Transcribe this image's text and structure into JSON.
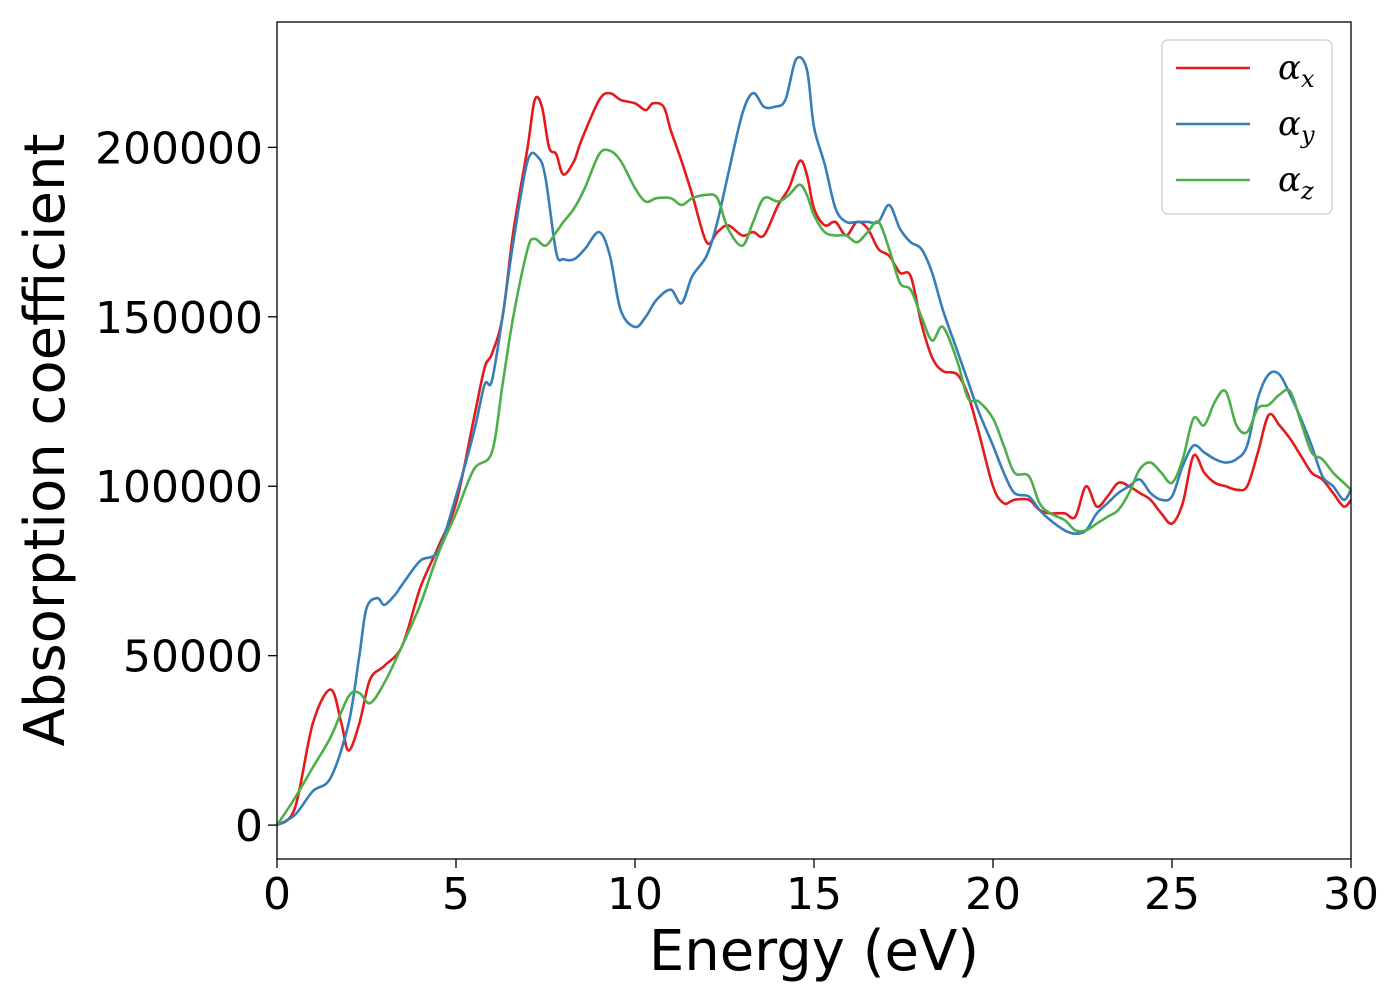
{
  "chart_data": {
    "type": "line",
    "xlabel": "Energy (eV)",
    "ylabel": "Absorption coefficient",
    "xlim": [
      0,
      30
    ],
    "ylim": [
      -10000,
      237000
    ],
    "xticks": [
      0,
      5,
      10,
      15,
      20,
      25,
      30
    ],
    "xtick_labels": [
      "0",
      "5",
      "10",
      "15",
      "20",
      "25",
      "30"
    ],
    "yticks": [
      0,
      50000,
      100000,
      150000,
      200000
    ],
    "ytick_labels": [
      "0",
      "50000",
      "100000",
      "150000",
      "200000"
    ],
    "grid": false,
    "legend_position": "top-right",
    "series": [
      {
        "name": "αx",
        "legend_symbol": "α",
        "legend_subscript": "x",
        "color": "#e41a1c",
        "x": [
          0,
          0.5,
          1.0,
          1.5,
          1.8,
          2.0,
          2.3,
          2.6,
          3.0,
          3.5,
          4.0,
          4.5,
          5.0,
          5.5,
          5.8,
          6.0,
          6.3,
          6.6,
          7.0,
          7.2,
          7.4,
          7.6,
          7.8,
          8.0,
          8.3,
          8.5,
          9.0,
          9.3,
          9.6,
          10.0,
          10.3,
          10.5,
          10.8,
          11.0,
          11.3,
          11.6,
          12.0,
          12.3,
          12.6,
          13.0,
          13.3,
          13.6,
          14.0,
          14.3,
          14.6,
          14.8,
          15.0,
          15.3,
          15.6,
          15.9,
          16.2,
          16.5,
          16.8,
          17.1,
          17.4,
          17.7,
          18.0,
          18.3,
          18.6,
          19.0,
          19.3,
          19.6,
          20.0,
          20.3,
          20.6,
          21.0,
          21.3,
          21.6,
          22.0,
          22.3,
          22.6,
          22.9,
          23.2,
          23.5,
          23.8,
          24.1,
          24.4,
          24.7,
          25.0,
          25.3,
          25.6,
          25.9,
          26.2,
          26.5,
          26.8,
          27.1,
          27.4,
          27.7,
          28.0,
          28.3,
          28.6,
          28.9,
          29.2,
          29.5,
          29.8,
          30.0
        ],
        "y": [
          0,
          5000,
          30000,
          40000,
          30000,
          22000,
          30000,
          43000,
          47000,
          53000,
          70000,
          82000,
          95000,
          120000,
          135000,
          139000,
          150000,
          175000,
          200000,
          214000,
          212000,
          200000,
          198000,
          192000,
          196000,
          202000,
          214000,
          216000,
          214000,
          213000,
          211000,
          213000,
          212000,
          205000,
          196000,
          186000,
          172000,
          175000,
          177000,
          174000,
          175000,
          174000,
          183000,
          188000,
          196000,
          192000,
          182000,
          177000,
          178000,
          174000,
          178000,
          176000,
          170000,
          168000,
          163000,
          162000,
          148000,
          138000,
          134000,
          133000,
          127000,
          116000,
          100000,
          95000,
          96000,
          96000,
          93000,
          92000,
          92000,
          91000,
          100000,
          94000,
          97000,
          101000,
          100000,
          98000,
          96000,
          92000,
          89000,
          95000,
          109000,
          104000,
          101000,
          100000,
          99000,
          100000,
          110000,
          121000,
          118000,
          114000,
          109000,
          104000,
          102000,
          98000,
          94000,
          96000
        ]
      },
      {
        "name": "αy",
        "legend_symbol": "α",
        "legend_subscript": "y",
        "color": "#377eb8",
        "x": [
          0,
          0.5,
          1.0,
          1.5,
          2.0,
          2.3,
          2.5,
          2.8,
          3.0,
          3.3,
          3.5,
          4.0,
          4.5,
          5.0,
          5.5,
          5.8,
          6.0,
          6.3,
          6.6,
          7.0,
          7.3,
          7.5,
          7.8,
          8.0,
          8.3,
          8.6,
          9.0,
          9.3,
          9.6,
          10.0,
          10.3,
          10.6,
          11.0,
          11.3,
          11.6,
          12.0,
          12.3,
          12.6,
          13.0,
          13.3,
          13.6,
          13.9,
          14.2,
          14.5,
          14.8,
          15.0,
          15.3,
          15.6,
          15.9,
          16.2,
          16.5,
          16.8,
          17.1,
          17.4,
          17.7,
          18.0,
          18.3,
          18.6,
          19.0,
          19.3,
          19.6,
          20.0,
          20.3,
          20.6,
          21.0,
          21.3,
          21.6,
          22.0,
          22.3,
          22.6,
          22.9,
          23.2,
          23.5,
          23.8,
          24.1,
          24.4,
          24.7,
          25.0,
          25.3,
          25.6,
          25.9,
          26.2,
          26.5,
          26.8,
          27.1,
          27.4,
          27.7,
          28.0,
          28.3,
          28.6,
          28.9,
          29.2,
          29.5,
          29.8,
          30.0
        ],
        "y": [
          0,
          3000,
          10000,
          14000,
          30000,
          50000,
          64000,
          67000,
          65000,
          68000,
          71000,
          78000,
          81000,
          97000,
          116000,
          130000,
          131000,
          150000,
          172000,
          196000,
          197000,
          191000,
          169000,
          167000,
          167000,
          170000,
          175000,
          168000,
          152000,
          147000,
          150000,
          155000,
          158000,
          154000,
          162000,
          168000,
          178000,
          192000,
          210000,
          216000,
          212000,
          212000,
          214000,
          226000,
          223000,
          206000,
          195000,
          182000,
          178000,
          178000,
          178000,
          178000,
          183000,
          176000,
          172000,
          170000,
          163000,
          152000,
          140000,
          131000,
          122000,
          112000,
          104000,
          98000,
          97000,
          93000,
          90000,
          87000,
          86000,
          87000,
          92000,
          95000,
          98000,
          100000,
          102000,
          98000,
          96000,
          97000,
          106000,
          112000,
          110000,
          108000,
          107000,
          108000,
          112000,
          126000,
          133000,
          133000,
          127000,
          120000,
          112000,
          103000,
          100000,
          96000,
          99000
        ]
      },
      {
        "name": "αz",
        "legend_symbol": "α",
        "legend_subscript": "z",
        "color": "#4daf4a",
        "x": [
          0,
          0.5,
          1.0,
          1.5,
          2.0,
          2.3,
          2.6,
          3.0,
          3.5,
          4.0,
          4.5,
          5.0,
          5.5,
          6.0,
          6.3,
          6.6,
          7.0,
          7.2,
          7.5,
          7.8,
          8.0,
          8.3,
          8.6,
          9.0,
          9.3,
          9.6,
          10.0,
          10.3,
          10.6,
          11.0,
          11.3,
          11.6,
          12.0,
          12.3,
          12.6,
          13.0,
          13.3,
          13.6,
          14.0,
          14.3,
          14.6,
          14.8,
          15.0,
          15.3,
          15.6,
          15.9,
          16.2,
          16.5,
          16.8,
          17.1,
          17.4,
          17.7,
          18.0,
          18.3,
          18.6,
          19.0,
          19.3,
          19.6,
          20.0,
          20.3,
          20.6,
          21.0,
          21.3,
          21.6,
          22.0,
          22.3,
          22.6,
          22.9,
          23.2,
          23.5,
          23.8,
          24.1,
          24.4,
          24.7,
          25.0,
          25.3,
          25.6,
          25.9,
          26.2,
          26.5,
          26.8,
          27.1,
          27.4,
          27.7,
          28.0,
          28.3,
          28.6,
          28.9,
          29.2,
          29.5,
          29.8,
          30.0
        ],
        "y": [
          0,
          8000,
          17000,
          26000,
          38000,
          39000,
          36000,
          42000,
          53000,
          65000,
          80000,
          92000,
          105000,
          110000,
          130000,
          150000,
          170000,
          173000,
          171000,
          175000,
          178000,
          182000,
          188000,
          198000,
          199000,
          196000,
          188000,
          184000,
          185000,
          185000,
          183000,
          185000,
          186000,
          185000,
          176000,
          171000,
          178000,
          185000,
          184000,
          186000,
          189000,
          186000,
          180000,
          175000,
          174000,
          174000,
          172000,
          175000,
          178000,
          170000,
          160000,
          158000,
          150000,
          143000,
          147000,
          137000,
          126000,
          125000,
          120000,
          112000,
          104000,
          103000,
          95000,
          92000,
          90000,
          87000,
          87000,
          89000,
          91000,
          93000,
          98000,
          105000,
          107000,
          104000,
          101000,
          108000,
          120000,
          118000,
          125000,
          128000,
          118000,
          116000,
          123000,
          124000,
          127000,
          128000,
          119000,
          110000,
          108000,
          104000,
          101000,
          99000
        ]
      }
    ]
  }
}
